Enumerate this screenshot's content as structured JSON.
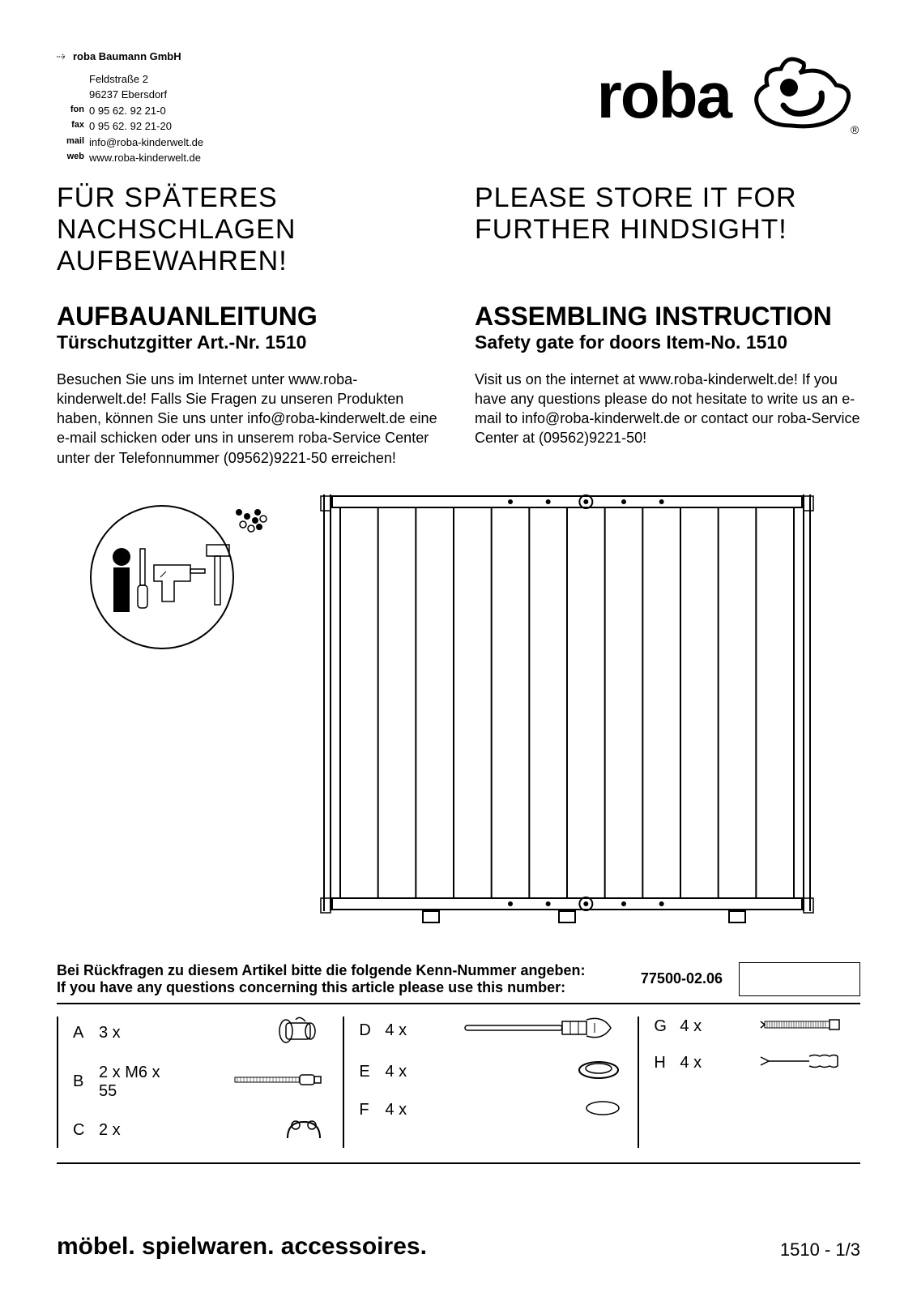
{
  "company": {
    "name": "roba Baumann GmbH",
    "street": "Feldstraße 2",
    "city": "96237 Ebersdorf",
    "fon_label": "fon",
    "fon": "0 95 62. 92 21-0",
    "fax_label": "fax",
    "fax": "0 95 62. 92 21-20",
    "mail_label": "mail",
    "mail": "info@roba-kinderwelt.de",
    "web_label": "web",
    "web": "www.roba-kinderwelt.de"
  },
  "logo_text": "roba",
  "store_de": "FÜR SPÄTERES NACHSCHLAGEN AUFBEWAHREN!",
  "store_en": "PLEASE STORE IT FOR FURTHER HINDSIGHT!",
  "title_de": "AUFBAUANLEITUNG",
  "subtitle_de": "Türschutzgitter   Art.-Nr. 1510",
  "title_en": "ASSEMBLING INSTRUCTION",
  "subtitle_en": "Safety gate for doors  Item-No. 1510",
  "body_de": "Besuchen Sie uns im Internet unter www.roba-kinderwelt.de! Falls Sie Fragen zu unseren Produkten haben, können Sie uns unter info@roba-kinderwelt.de eine e-mail schicken oder uns in unserem roba-Service Center unter der Telefonnummer (09562)9221-50 erreichen!",
  "body_en": "Visit us on the internet at www.roba-kinderwelt.de! If you have any questions please do not hesitate to write us an e-mail to info@roba-kinderwelt.de or contact our roba-Service Center at (09562)9221-50!",
  "ref_de": "Bei Rückfragen zu diesem Artikel bitte die folgende Kenn-Nummer angeben:",
  "ref_en": "If you have any questions concerning this article please use this number:",
  "ref_number": "77500-02.06",
  "parts": {
    "col1": [
      {
        "letter": "A",
        "qty": "3 x",
        "extra": ""
      },
      {
        "letter": "B",
        "qty": "2 x",
        "extra": "M6 x 55"
      },
      {
        "letter": "C",
        "qty": "2 x",
        "extra": ""
      }
    ],
    "col2": [
      {
        "letter": "D",
        "qty": "4 x"
      },
      {
        "letter": "E",
        "qty": "4 x"
      },
      {
        "letter": "F",
        "qty": "4 x"
      }
    ],
    "col3": [
      {
        "letter": "G",
        "qty": "4 x"
      },
      {
        "letter": "H",
        "qty": "4 x"
      }
    ]
  },
  "footer_tag": "möbel. spielwaren. accessoires.",
  "page_num": "1510 - 1/3",
  "colors": {
    "text": "#000000",
    "bg": "#ffffff",
    "stroke": "#000000"
  },
  "gate": {
    "bars": 13,
    "holes_top": [
      4,
      5,
      6,
      7,
      8
    ],
    "circle_bar": 6
  }
}
